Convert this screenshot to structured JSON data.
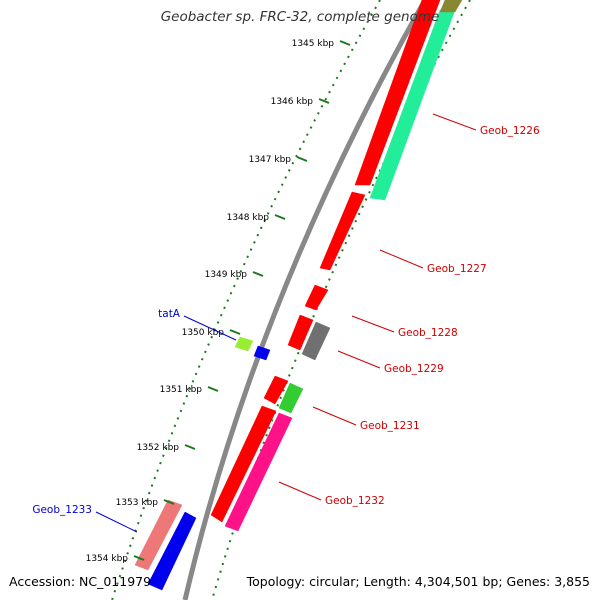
{
  "title": "Geobacter sp. FRC-32, complete genome",
  "footer": {
    "accession": "Accession: NC_011979",
    "topology": "Topology: circular; Length: 4,304,501 bp; Genes: 3,855"
  },
  "colors": {
    "backbone": "#888888",
    "tick": "#1a7a1a",
    "label_red": "#cc0000",
    "label_blue": "#0000cc"
  },
  "ticks": [
    "1345 kbp",
    "1346 kbp",
    "1347 kbp",
    "1348 kbp",
    "1349 kbp",
    "1350 kbp",
    "1351 kbp",
    "1352 kbp",
    "1353 kbp",
    "1354 kbp"
  ],
  "labels": [
    {
      "text": "Geob_1226",
      "color": "#cc0000"
    },
    {
      "text": "Geob_1227",
      "color": "#cc0000"
    },
    {
      "text": "Geob_1228",
      "color": "#cc0000"
    },
    {
      "text": "Geob_1229",
      "color": "#cc0000"
    },
    {
      "text": "Geob_1231",
      "color": "#cc0000"
    },
    {
      "text": "Geob_1232",
      "color": "#cc0000"
    },
    {
      "text": "tatA",
      "color": "#0000cc"
    },
    {
      "text": "Geob_1233",
      "color": "#0000cc"
    }
  ],
  "gene_colors": [
    "#ff0000",
    "#22ee99",
    "#ff0000",
    "#ff0000",
    "#ff0000",
    "#707070",
    "#99ee33",
    "#0000ee",
    "#ff0000",
    "#33cc33",
    "#ff0000",
    "#ff1188",
    "#ee7777",
    "#0000ee",
    "#888833"
  ]
}
